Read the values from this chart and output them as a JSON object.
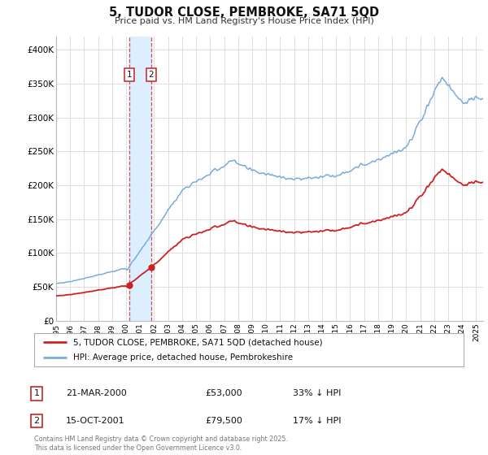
{
  "title": "5, TUDOR CLOSE, PEMBROKE, SA71 5QD",
  "subtitle": "Price paid vs. HM Land Registry's House Price Index (HPI)",
  "ylabel_ticks": [
    "£0",
    "£50K",
    "£100K",
    "£150K",
    "£200K",
    "£250K",
    "£300K",
    "£350K",
    "£400K"
  ],
  "ytick_values": [
    0,
    50000,
    100000,
    150000,
    200000,
    250000,
    300000,
    350000,
    400000
  ],
  "ylim": [
    0,
    420000
  ],
  "xlim_start": 1995.0,
  "xlim_end": 2025.5,
  "hpi_color": "#7aabdb",
  "price_color": "#cc2222",
  "vline_color": "#cc3333",
  "span_color": "#ddeeff",
  "transaction1_date": 2000.22,
  "transaction1_price": 53000,
  "transaction1_label": "1",
  "transaction2_date": 2001.79,
  "transaction2_price": 79500,
  "transaction2_label": "2",
  "legend_line1": "5, TUDOR CLOSE, PEMBROKE, SA71 5QD (detached house)",
  "legend_line2": "HPI: Average price, detached house, Pembrokeshire",
  "table_row1": [
    "1",
    "21-MAR-2000",
    "£53,000",
    "33% ↓ HPI"
  ],
  "table_row2": [
    "2",
    "15-OCT-2001",
    "£79,500",
    "17% ↓ HPI"
  ],
  "footer": "Contains HM Land Registry data © Crown copyright and database right 2025.\nThis data is licensed under the Open Government Licence v3.0.",
  "background_color": "#ffffff",
  "grid_color": "#dddddd"
}
